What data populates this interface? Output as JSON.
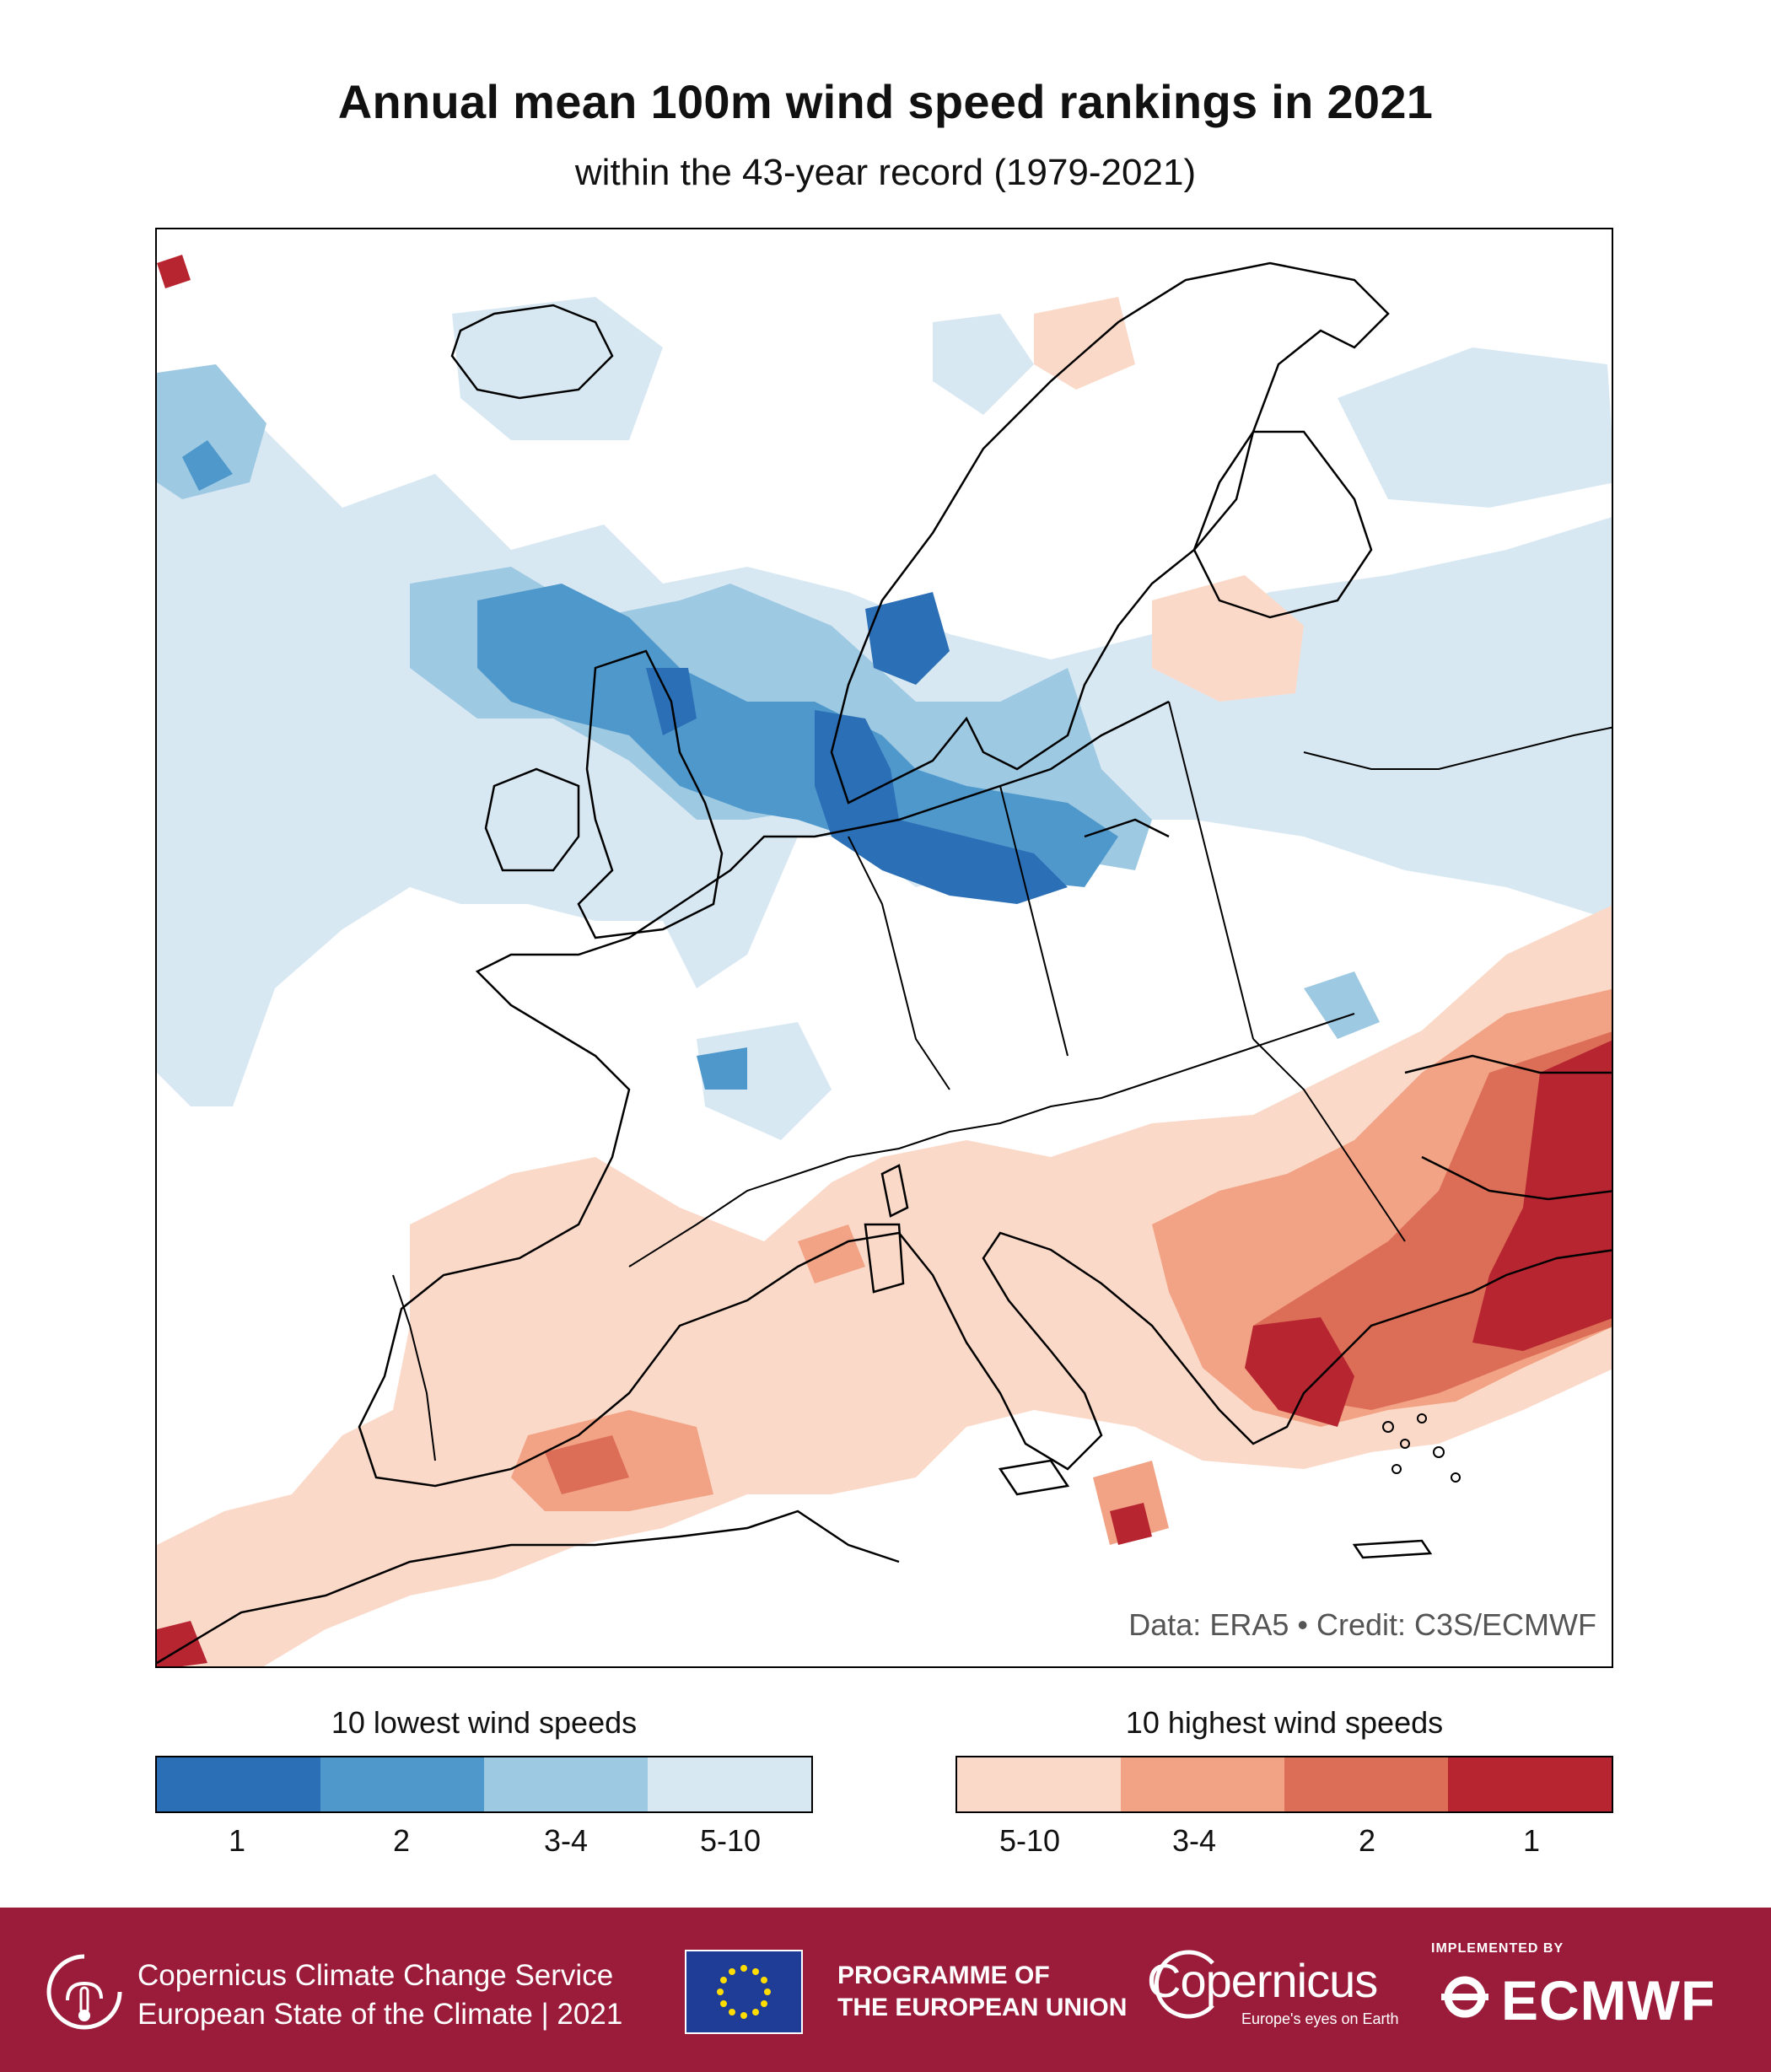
{
  "title": "Annual mean 100m wind speed rankings in 2021",
  "subtitle": "within the 43-year record (1979-2021)",
  "credit": "Data: ERA5 • Credit: C3S/ECMWF",
  "legend_low": {
    "title": "10 lowest wind speeds",
    "labels": [
      "1",
      "2",
      "3-4",
      "5-10"
    ],
    "colors": [
      "#2b6fb7",
      "#4f98cb",
      "#9ec9e2",
      "#d8e8f3"
    ]
  },
  "legend_high": {
    "title": "10 highest wind speeds",
    "labels": [
      "5-10",
      "3-4",
      "2",
      "1"
    ],
    "colors": [
      "#fbd9c9",
      "#f2a385",
      "#dc6d57",
      "#b72531"
    ]
  },
  "footer": {
    "c3s_line1": "Copernicus Climate Change Service",
    "c3s_line2": "European State of the Climate | 2021",
    "programme_line1": "PROGRAMME OF",
    "programme_line2": "THE EUROPEAN UNION",
    "copernicus_word": "Copernicus",
    "copernicus_tagline": "Europe's eyes on Earth",
    "implemented_by": "IMPLEMENTED BY",
    "ecmwf": "ECMWF"
  }
}
